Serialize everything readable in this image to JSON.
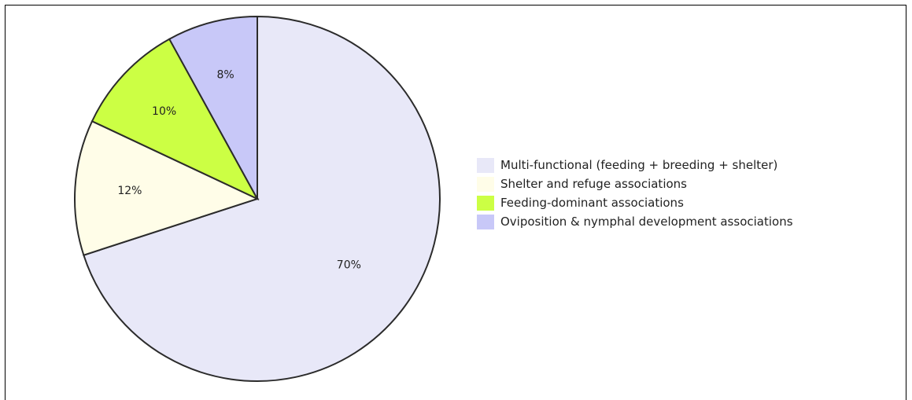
{
  "chart_data": {
    "type": "pie",
    "slices": [
      {
        "label": "Multi-functional (feeding + breeding + shelter)",
        "value": 70,
        "display": "70%",
        "color": "#e8e8f8"
      },
      {
        "label": "Shelter and refuge associations",
        "value": 12,
        "display": "12%",
        "color": "#fffde8"
      },
      {
        "label": "Feeding-dominant associations",
        "value": 10,
        "display": "10%",
        "color": "#ccff44"
      },
      {
        "label": "Oviposition & nymphal development associations",
        "value": 8,
        "display": "8%",
        "color": "#c8c8f8"
      }
    ],
    "start_angle_deg": 0,
    "direction": "clockwise",
    "legend_position": "right"
  }
}
